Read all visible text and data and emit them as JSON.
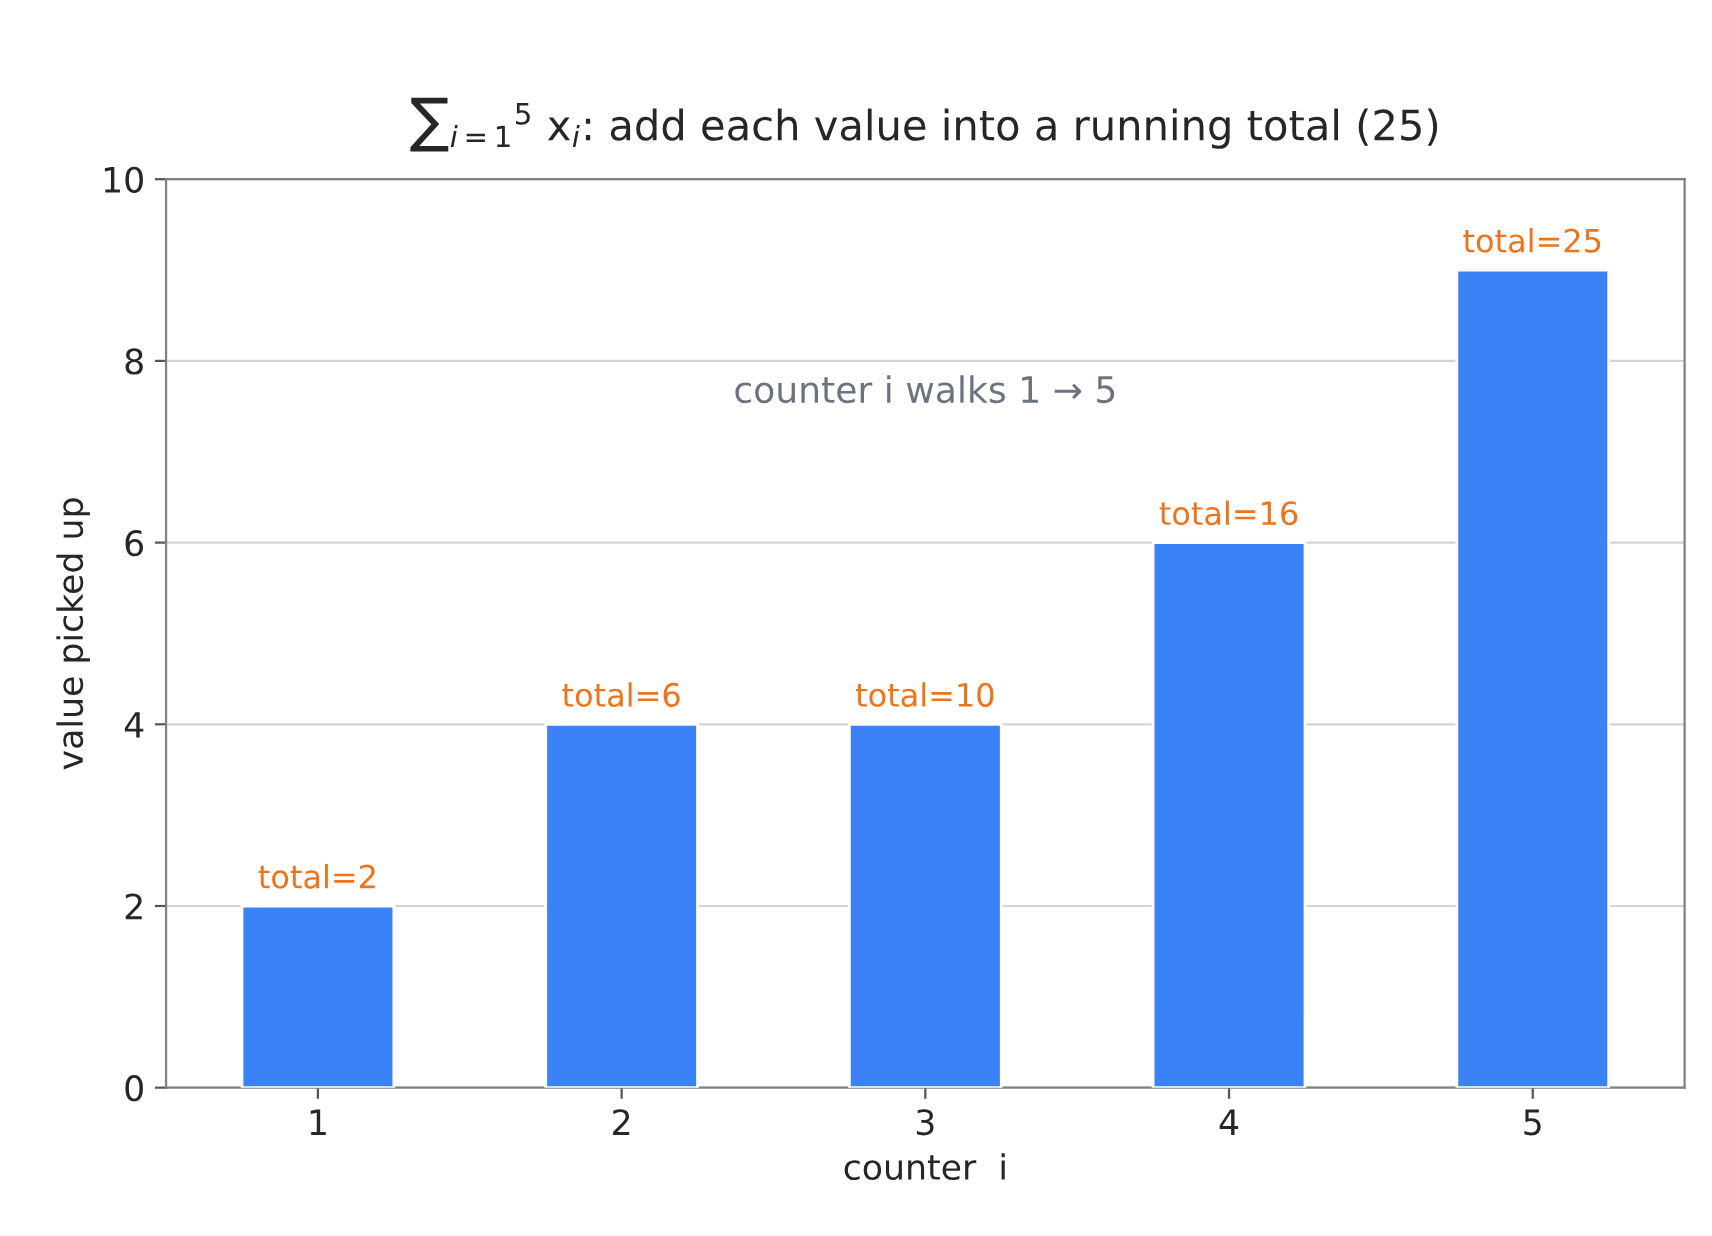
{
  "chart_data": {
    "type": "bar",
    "title": "∑$_{i=1}$$^{5}$ x$_{i}$: add each value into a running total (25)",
    "xlabel": "counter  i",
    "ylabel": "value picked up",
    "categories": [
      "1",
      "2",
      "3",
      "4",
      "5"
    ],
    "values": [
      2,
      4,
      4,
      6,
      9
    ],
    "color": "#3b82f6",
    "ylim": [
      0,
      10
    ],
    "yticks": [
      0,
      2,
      4,
      6,
      8,
      10
    ],
    "grid": "y",
    "annotations": [
      "counter i walks 1 → 5",
      {
        "text": "total=2",
        "x": "1",
        "y": 2
      },
      {
        "text": "total=6",
        "x": "2",
        "y": 4
      },
      {
        "text": "total=10",
        "x": "3",
        "y": 4
      },
      {
        "text": "total=16",
        "x": "4",
        "y": 6
      },
      {
        "text": "total=25",
        "x": "5",
        "y": 9
      }
    ]
  }
}
